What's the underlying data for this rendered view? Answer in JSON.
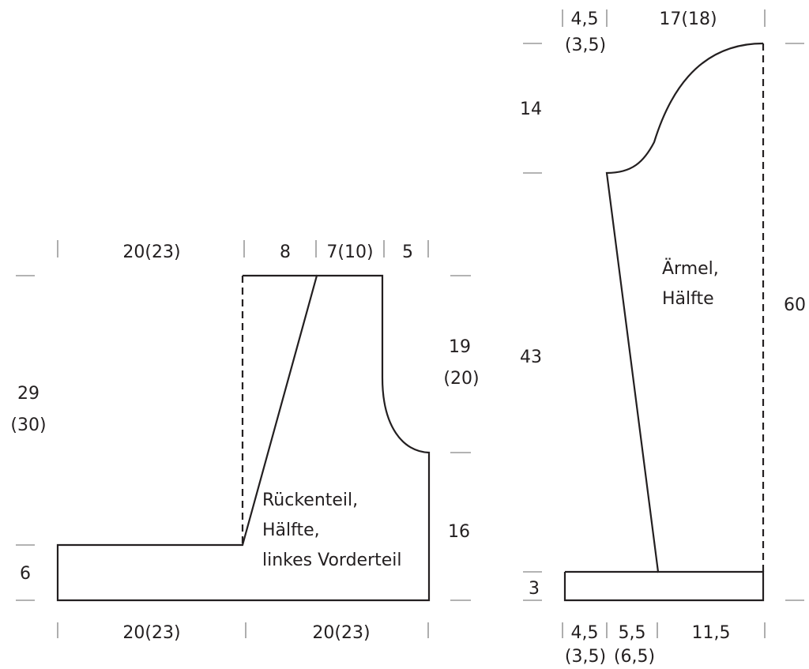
{
  "back_front_piece": {
    "label_lines": [
      "Rückenteil,",
      "Hälfte,",
      "linkes Vorderteil"
    ],
    "top_widths": [
      "20(23)",
      "8",
      "7(10)",
      "5"
    ],
    "bottom_widths": [
      "20(23)",
      "20(23)"
    ],
    "height_total": [
      "29",
      "(30)"
    ],
    "height_hem": "6",
    "height_armhole": [
      "19",
      "(20)"
    ],
    "height_side": "16"
  },
  "sleeve_piece": {
    "label_lines": [
      "Ärmel,",
      "Hälfte"
    ],
    "top_widths": [
      [
        "4,5",
        "(3,5)"
      ],
      "17(18)"
    ],
    "bottom_widths": [
      [
        "4,5",
        "(3,5)"
      ],
      [
        "5,5",
        "(6,5)"
      ],
      "11,5"
    ],
    "height_cap": "14",
    "height_body": "43",
    "height_total": "60",
    "height_cuff": "3"
  }
}
